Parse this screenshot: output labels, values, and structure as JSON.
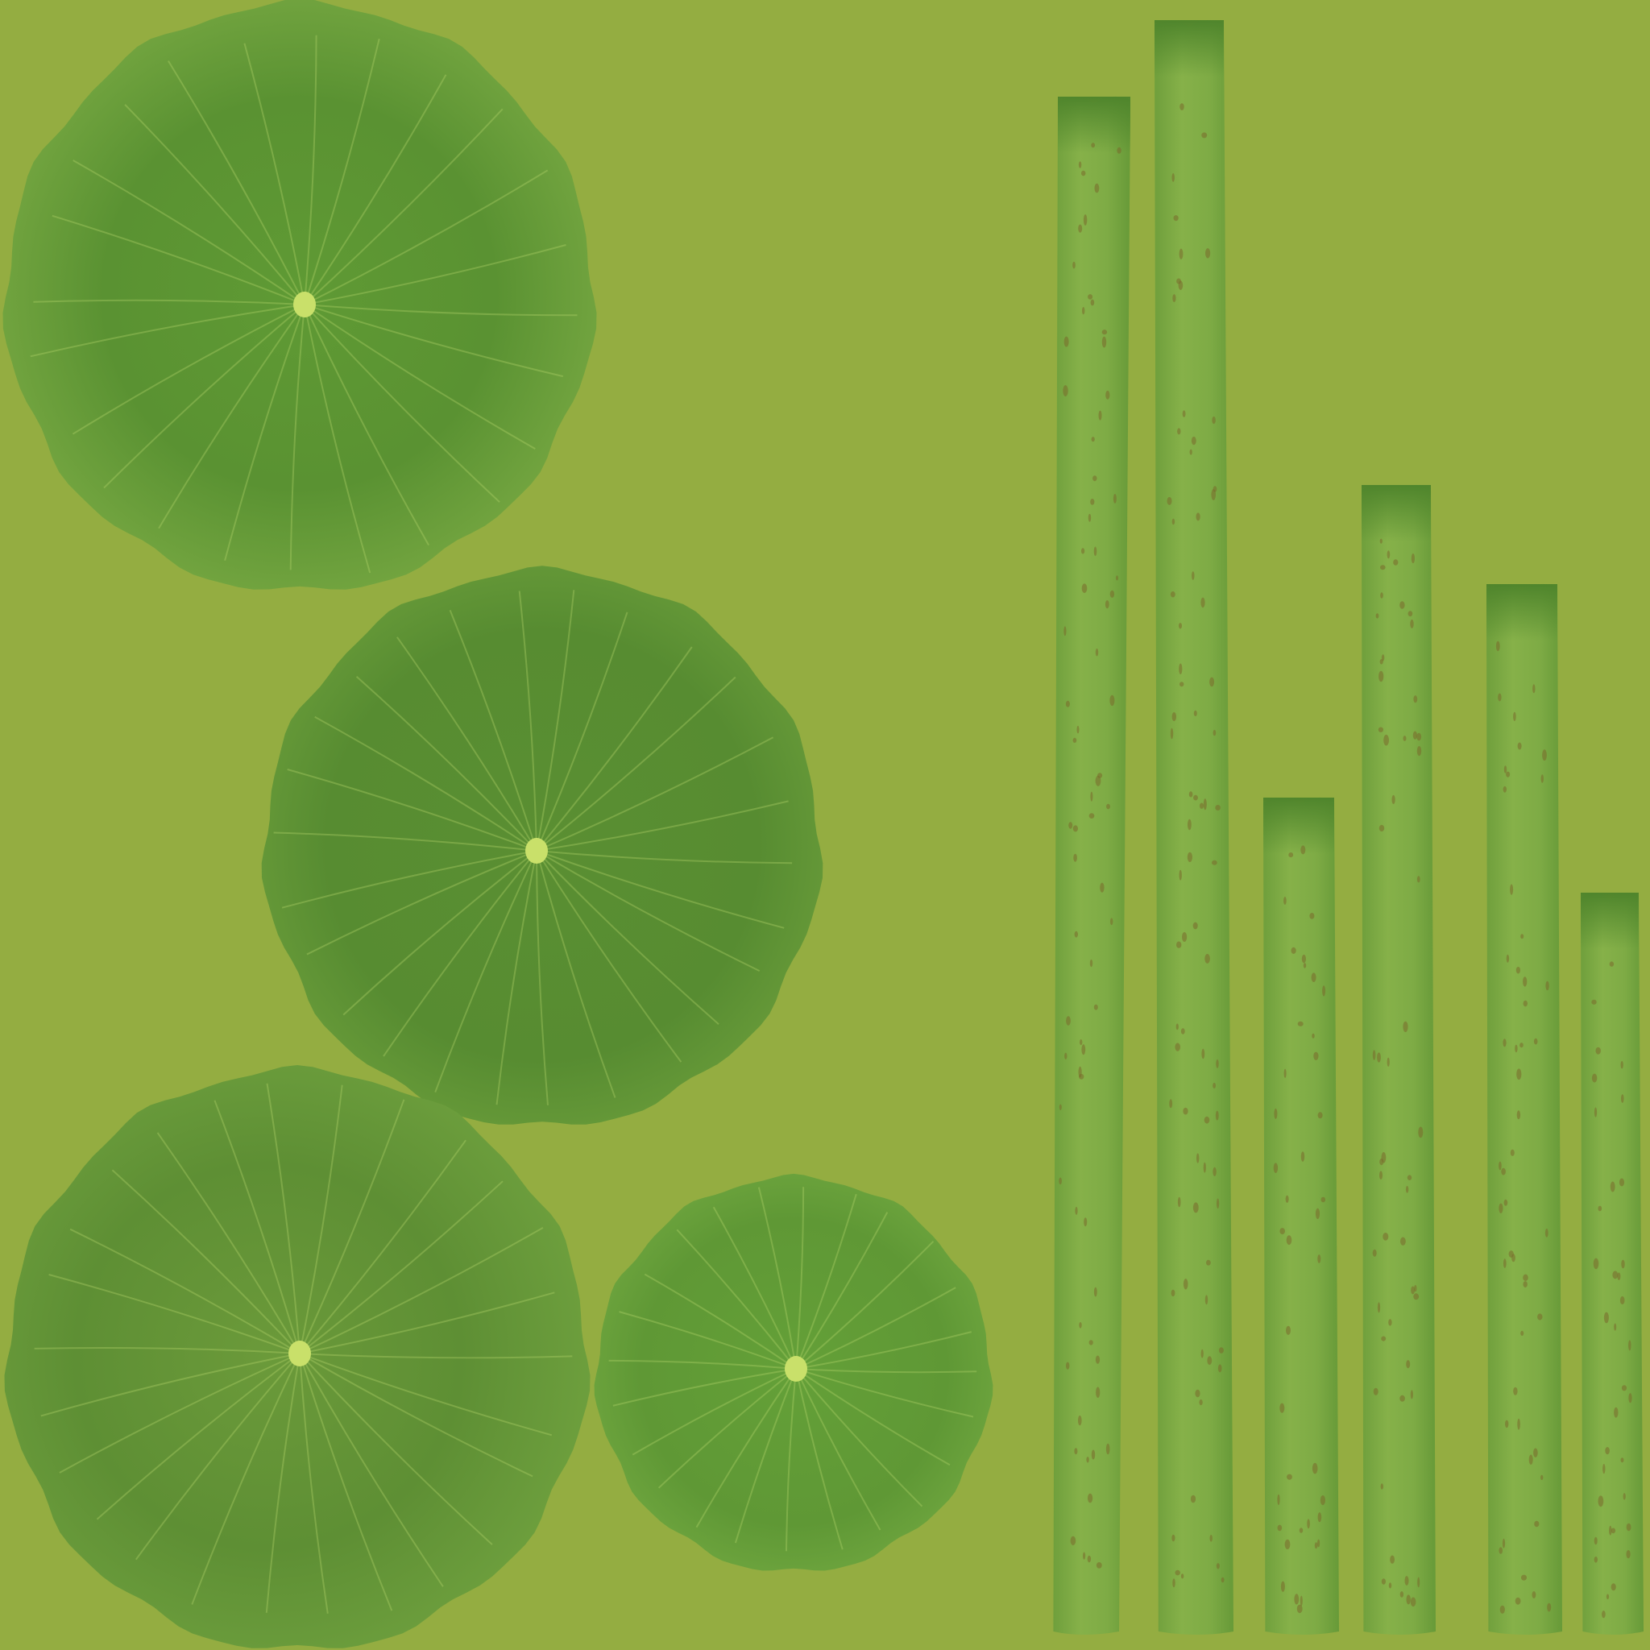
{
  "scene": {
    "subject": "lotus-leaf-and-stem-texture-atlas",
    "palette": {
      "background": "#94ad41",
      "leaf_light": "#75a53d",
      "leaf_mid": "#649a36",
      "leaf_dark": "#4f862c",
      "leaf_center": "#c9e06a",
      "vein": "#b6d86c",
      "stem_light": "#86b149",
      "stem_dark": "#5b8f30",
      "speck": "#7a6a2c"
    },
    "leaf_count": 4,
    "stem_count": 6
  }
}
